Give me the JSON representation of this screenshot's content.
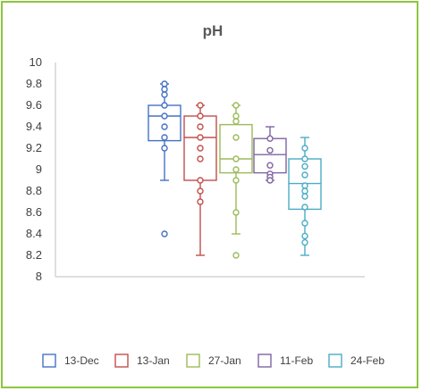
{
  "chart_data": {
    "type": "boxplot",
    "title": "pH",
    "xlabel": "",
    "ylabel": "",
    "ylim": [
      8,
      10
    ],
    "y_ticks": [
      "10",
      "9.8",
      "9.6",
      "9.4",
      "9.2",
      "9",
      "8.8",
      "8.6",
      "8.4",
      "8.2",
      "8"
    ],
    "y_tick_values": [
      10,
      9.8,
      9.6,
      9.4,
      9.2,
      9.0,
      8.8,
      8.6,
      8.4,
      8.2,
      8.0
    ],
    "grid": false,
    "legend_position": "bottom",
    "series": [
      {
        "name": "13-Dec",
        "color": "#4472c4",
        "whisker_low": 8.9,
        "q1": 9.27,
        "median": 9.5,
        "q3": 9.6,
        "whisker_high": 9.8,
        "points": [
          9.8,
          9.75,
          9.7,
          9.6,
          9.5,
          9.4,
          9.3,
          9.2,
          8.4
        ]
      },
      {
        "name": "13-Jan",
        "color": "#c0504d",
        "whisker_low": 8.2,
        "q1": 8.9,
        "median": 9.3,
        "q3": 9.5,
        "whisker_high": 9.6,
        "points": [
          9.6,
          9.5,
          9.4,
          9.3,
          9.2,
          9.1,
          8.9,
          8.8,
          8.7
        ]
      },
      {
        "name": "27-Jan",
        "color": "#9bbb59",
        "whisker_low": 8.4,
        "q1": 8.97,
        "median": 9.1,
        "q3": 9.42,
        "whisker_high": 9.6,
        "points": [
          9.6,
          9.5,
          9.45,
          9.3,
          9.1,
          9.0,
          8.9,
          8.6,
          8.2
        ]
      },
      {
        "name": "11-Feb",
        "color": "#8064a2",
        "whisker_low": 8.9,
        "q1": 8.97,
        "median": 9.14,
        "q3": 9.29,
        "whisker_high": 9.4,
        "points": [
          9.29,
          9.18,
          9.04,
          8.96,
          8.93,
          8.9
        ]
      },
      {
        "name": "24-Feb",
        "color": "#4bacc6",
        "whisker_low": 8.2,
        "q1": 8.63,
        "median": 8.87,
        "q3": 9.1,
        "whisker_high": 9.3,
        "points": [
          9.2,
          9.1,
          9.03,
          8.95,
          8.85,
          8.8,
          8.75,
          8.65,
          8.5,
          8.38,
          8.32
        ]
      }
    ]
  }
}
